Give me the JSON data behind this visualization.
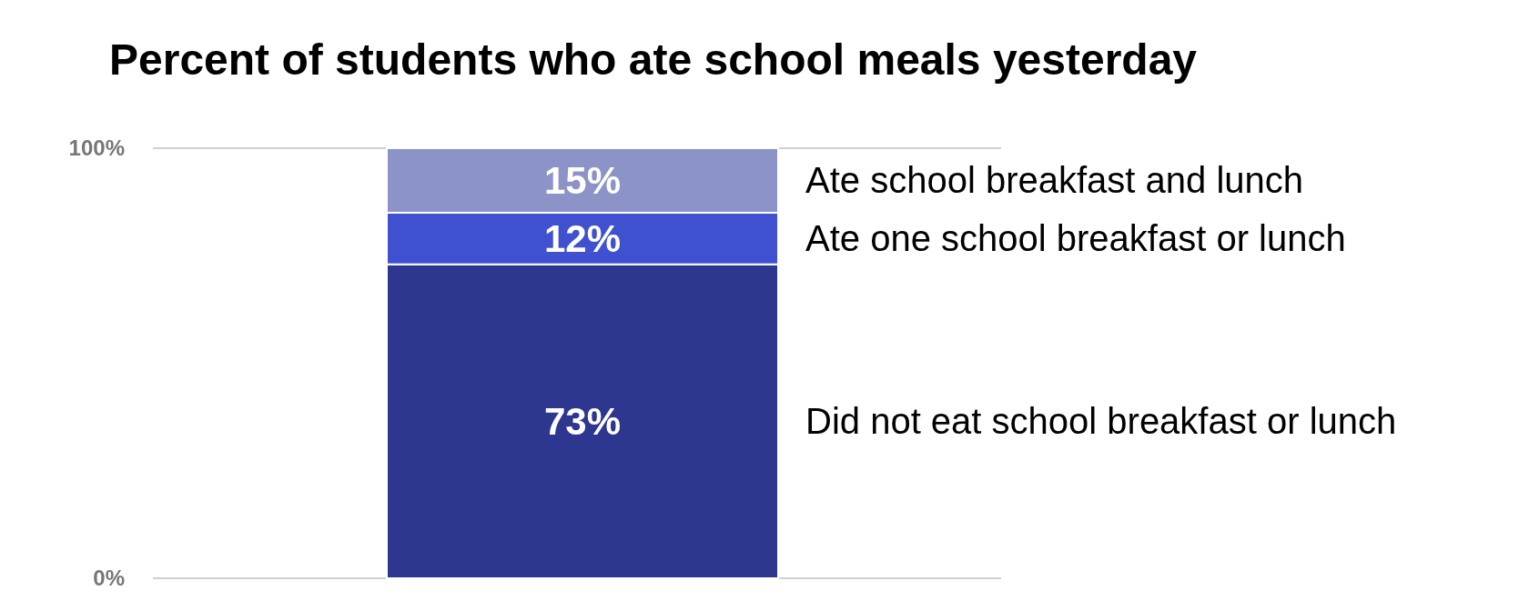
{
  "chart_data": {
    "type": "bar",
    "stacked": true,
    "title": "Percent of students who ate school meals yesterday",
    "categories": [
      null
    ],
    "series": [
      {
        "name": "Did not eat school breakfast or lunch",
        "color": "#2e3790",
        "values": [
          73
        ],
        "value_labels": [
          "73%"
        ]
      },
      {
        "name": "Ate one school breakfast or lunch",
        "color": "#3f51d0",
        "values": [
          12
        ],
        "value_labels": [
          "12%"
        ]
      },
      {
        "name": "Ate school breakfast and lunch",
        "color": "#8c93c6",
        "values": [
          15
        ],
        "value_labels": [
          "15%"
        ]
      }
    ],
    "ylim": [
      0,
      100
    ],
    "yticks": [
      {
        "value": 0,
        "label": "0%"
      },
      {
        "value": 100,
        "label": "100%"
      }
    ],
    "grid": "y"
  }
}
